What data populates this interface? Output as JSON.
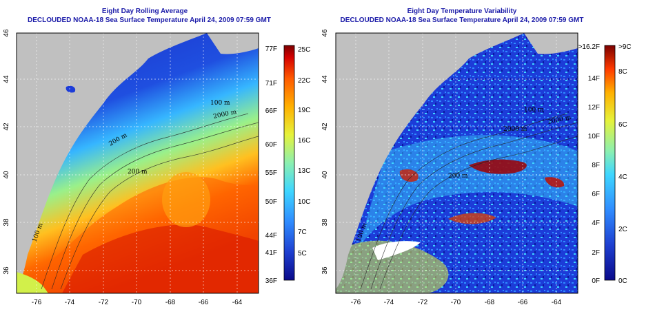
{
  "left_panel": {
    "title_line1": "Eight Day Rolling Average",
    "title_line2": "DECLOUDED NOAA-18 Sea Surface Temperature April 24, 2009 07:59 GMT",
    "x_ticks": [
      "-76",
      "-74",
      "-72",
      "-70",
      "-68",
      "-66",
      "-64"
    ],
    "y_ticks": [
      "36",
      "38",
      "40",
      "42",
      "44",
      "46"
    ],
    "contour_labels": [
      "100 m",
      "2000 m",
      "200 m",
      "200 m",
      "100 m"
    ],
    "colorbar": {
      "left_labels": [
        "77F",
        "71F",
        "66F",
        "60F",
        "55F",
        "50F",
        "44F",
        "41F",
        "36F"
      ],
      "right_labels": [
        "25C",
        "22C",
        "19C",
        "16C",
        "13C",
        "10C",
        "7C",
        "5C"
      ]
    }
  },
  "right_panel": {
    "title_line1": "Eight Day Temperature Variability",
    "title_line2": "DECLOUDED NOAA-18 Sea Surface Temperature April 24, 2009 07:59 GMT",
    "x_ticks": [
      "-76",
      "-74",
      "-72",
      "-70",
      "-68",
      "-66",
      "-64"
    ],
    "y_ticks": [
      "36",
      "38",
      "40",
      "42",
      "44",
      "46"
    ],
    "contour_labels": [
      "100 m",
      "2000 m",
      "2000 m",
      "200 m",
      "100 m"
    ],
    "colorbar": {
      "left_labels": [
        ">16.2F",
        "14F",
        "12F",
        "10F",
        "8F",
        "6F",
        "4F",
        "2F",
        "0F"
      ],
      "right_labels": [
        ">9C",
        "8C",
        "6C",
        "4C",
        "2C",
        "0C"
      ]
    }
  },
  "colors": {
    "land": "#c0c0c0",
    "title": "#1a1aa8",
    "sst_scale": [
      "#0a0a8a",
      "#1e3fd0",
      "#2f8cff",
      "#3ed6ff",
      "#8cf0b0",
      "#e6f23a",
      "#ffb000",
      "#ff5a00",
      "#d40000",
      "#7a0000"
    ]
  }
}
